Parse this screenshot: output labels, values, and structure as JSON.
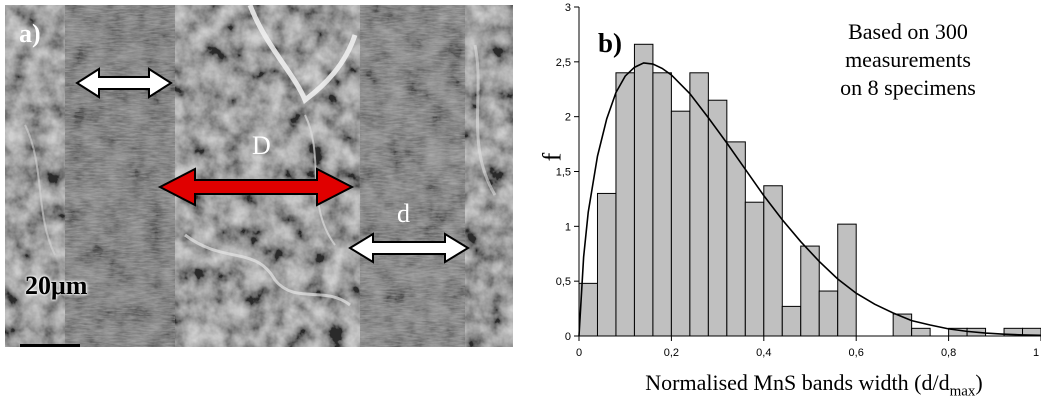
{
  "panel_a": {
    "label": "a)",
    "feature_D": "D",
    "feature_d": "d",
    "scale_label": "20μm"
  },
  "colors": {
    "bar_fill": "#c0c0c0",
    "bar_stroke": "#000000",
    "fit_curve": "#000000",
    "arrow_red": "#e00000",
    "arrow_white": "#ffffff",
    "sem_background": "#6b6b6b"
  },
  "chart_data": {
    "type": "bar",
    "panel_label": "b)",
    "annotation": [
      "Based on 300",
      "measurements",
      "on 8 specimens"
    ],
    "ylabel": "f",
    "xlabel_main": "Normalised MnS bands width (d/d",
    "xlabel_sub": "max",
    "xlabel_close": ")",
    "xlim": [
      0,
      1.0
    ],
    "ylim": [
      0,
      3
    ],
    "x_ticks": [
      0,
      0.2,
      0.4,
      0.6,
      0.8,
      1.0
    ],
    "x_tick_labels": [
      "0",
      "0,2",
      "0,4",
      "0,6",
      "0,8",
      "1"
    ],
    "y_ticks": [
      0,
      0.5,
      1,
      1.5,
      2,
      2.5,
      3
    ],
    "y_tick_labels": [
      "0",
      "0,5",
      "1",
      "1,5",
      "2",
      "2,5",
      "3"
    ],
    "bin_width": 0.04,
    "bins": [
      {
        "x0": 0.0,
        "x1": 0.04,
        "f": 0.48
      },
      {
        "x0": 0.04,
        "x1": 0.08,
        "f": 1.3
      },
      {
        "x0": 0.08,
        "x1": 0.12,
        "f": 2.4
      },
      {
        "x0": 0.12,
        "x1": 0.16,
        "f": 2.66
      },
      {
        "x0": 0.16,
        "x1": 0.2,
        "f": 2.4
      },
      {
        "x0": 0.2,
        "x1": 0.24,
        "f": 2.05
      },
      {
        "x0": 0.24,
        "x1": 0.28,
        "f": 2.4
      },
      {
        "x0": 0.28,
        "x1": 0.32,
        "f": 2.15
      },
      {
        "x0": 0.32,
        "x1": 0.36,
        "f": 1.77
      },
      {
        "x0": 0.36,
        "x1": 0.4,
        "f": 1.22
      },
      {
        "x0": 0.4,
        "x1": 0.44,
        "f": 1.37
      },
      {
        "x0": 0.44,
        "x1": 0.48,
        "f": 0.27
      },
      {
        "x0": 0.48,
        "x1": 0.52,
        "f": 0.82
      },
      {
        "x0": 0.52,
        "x1": 0.56,
        "f": 0.41
      },
      {
        "x0": 0.56,
        "x1": 0.6,
        "f": 1.02
      },
      {
        "x0": 0.6,
        "x1": 0.64,
        "f": 0.0
      },
      {
        "x0": 0.64,
        "x1": 0.68,
        "f": 0.0
      },
      {
        "x0": 0.68,
        "x1": 0.72,
        "f": 0.2
      },
      {
        "x0": 0.72,
        "x1": 0.76,
        "f": 0.07
      },
      {
        "x0": 0.76,
        "x1": 0.8,
        "f": 0.0
      },
      {
        "x0": 0.8,
        "x1": 0.84,
        "f": 0.07
      },
      {
        "x0": 0.84,
        "x1": 0.88,
        "f": 0.07
      },
      {
        "x0": 0.88,
        "x1": 0.92,
        "f": 0.0
      },
      {
        "x0": 0.92,
        "x1": 0.96,
        "f": 0.07
      },
      {
        "x0": 0.96,
        "x1": 1.0,
        "f": 0.07
      }
    ],
    "fit_curve": {
      "type": "line",
      "x": [
        0.0,
        0.01,
        0.02,
        0.04,
        0.06,
        0.08,
        0.1,
        0.12,
        0.14,
        0.16,
        0.18,
        0.2,
        0.24,
        0.28,
        0.32,
        0.36,
        0.4,
        0.44,
        0.48,
        0.52,
        0.56,
        0.6,
        0.64,
        0.68,
        0.72,
        0.76,
        0.8,
        0.84,
        0.88,
        0.92,
        0.96,
        1.0
      ],
      "y": [
        0.0,
        0.72,
        1.13,
        1.64,
        1.98,
        2.22,
        2.37,
        2.45,
        2.49,
        2.48,
        2.44,
        2.38,
        2.21,
        1.99,
        1.76,
        1.52,
        1.28,
        1.06,
        0.86,
        0.68,
        0.52,
        0.39,
        0.29,
        0.21,
        0.14,
        0.1,
        0.065,
        0.042,
        0.027,
        0.017,
        0.01,
        0.006
      ]
    }
  }
}
